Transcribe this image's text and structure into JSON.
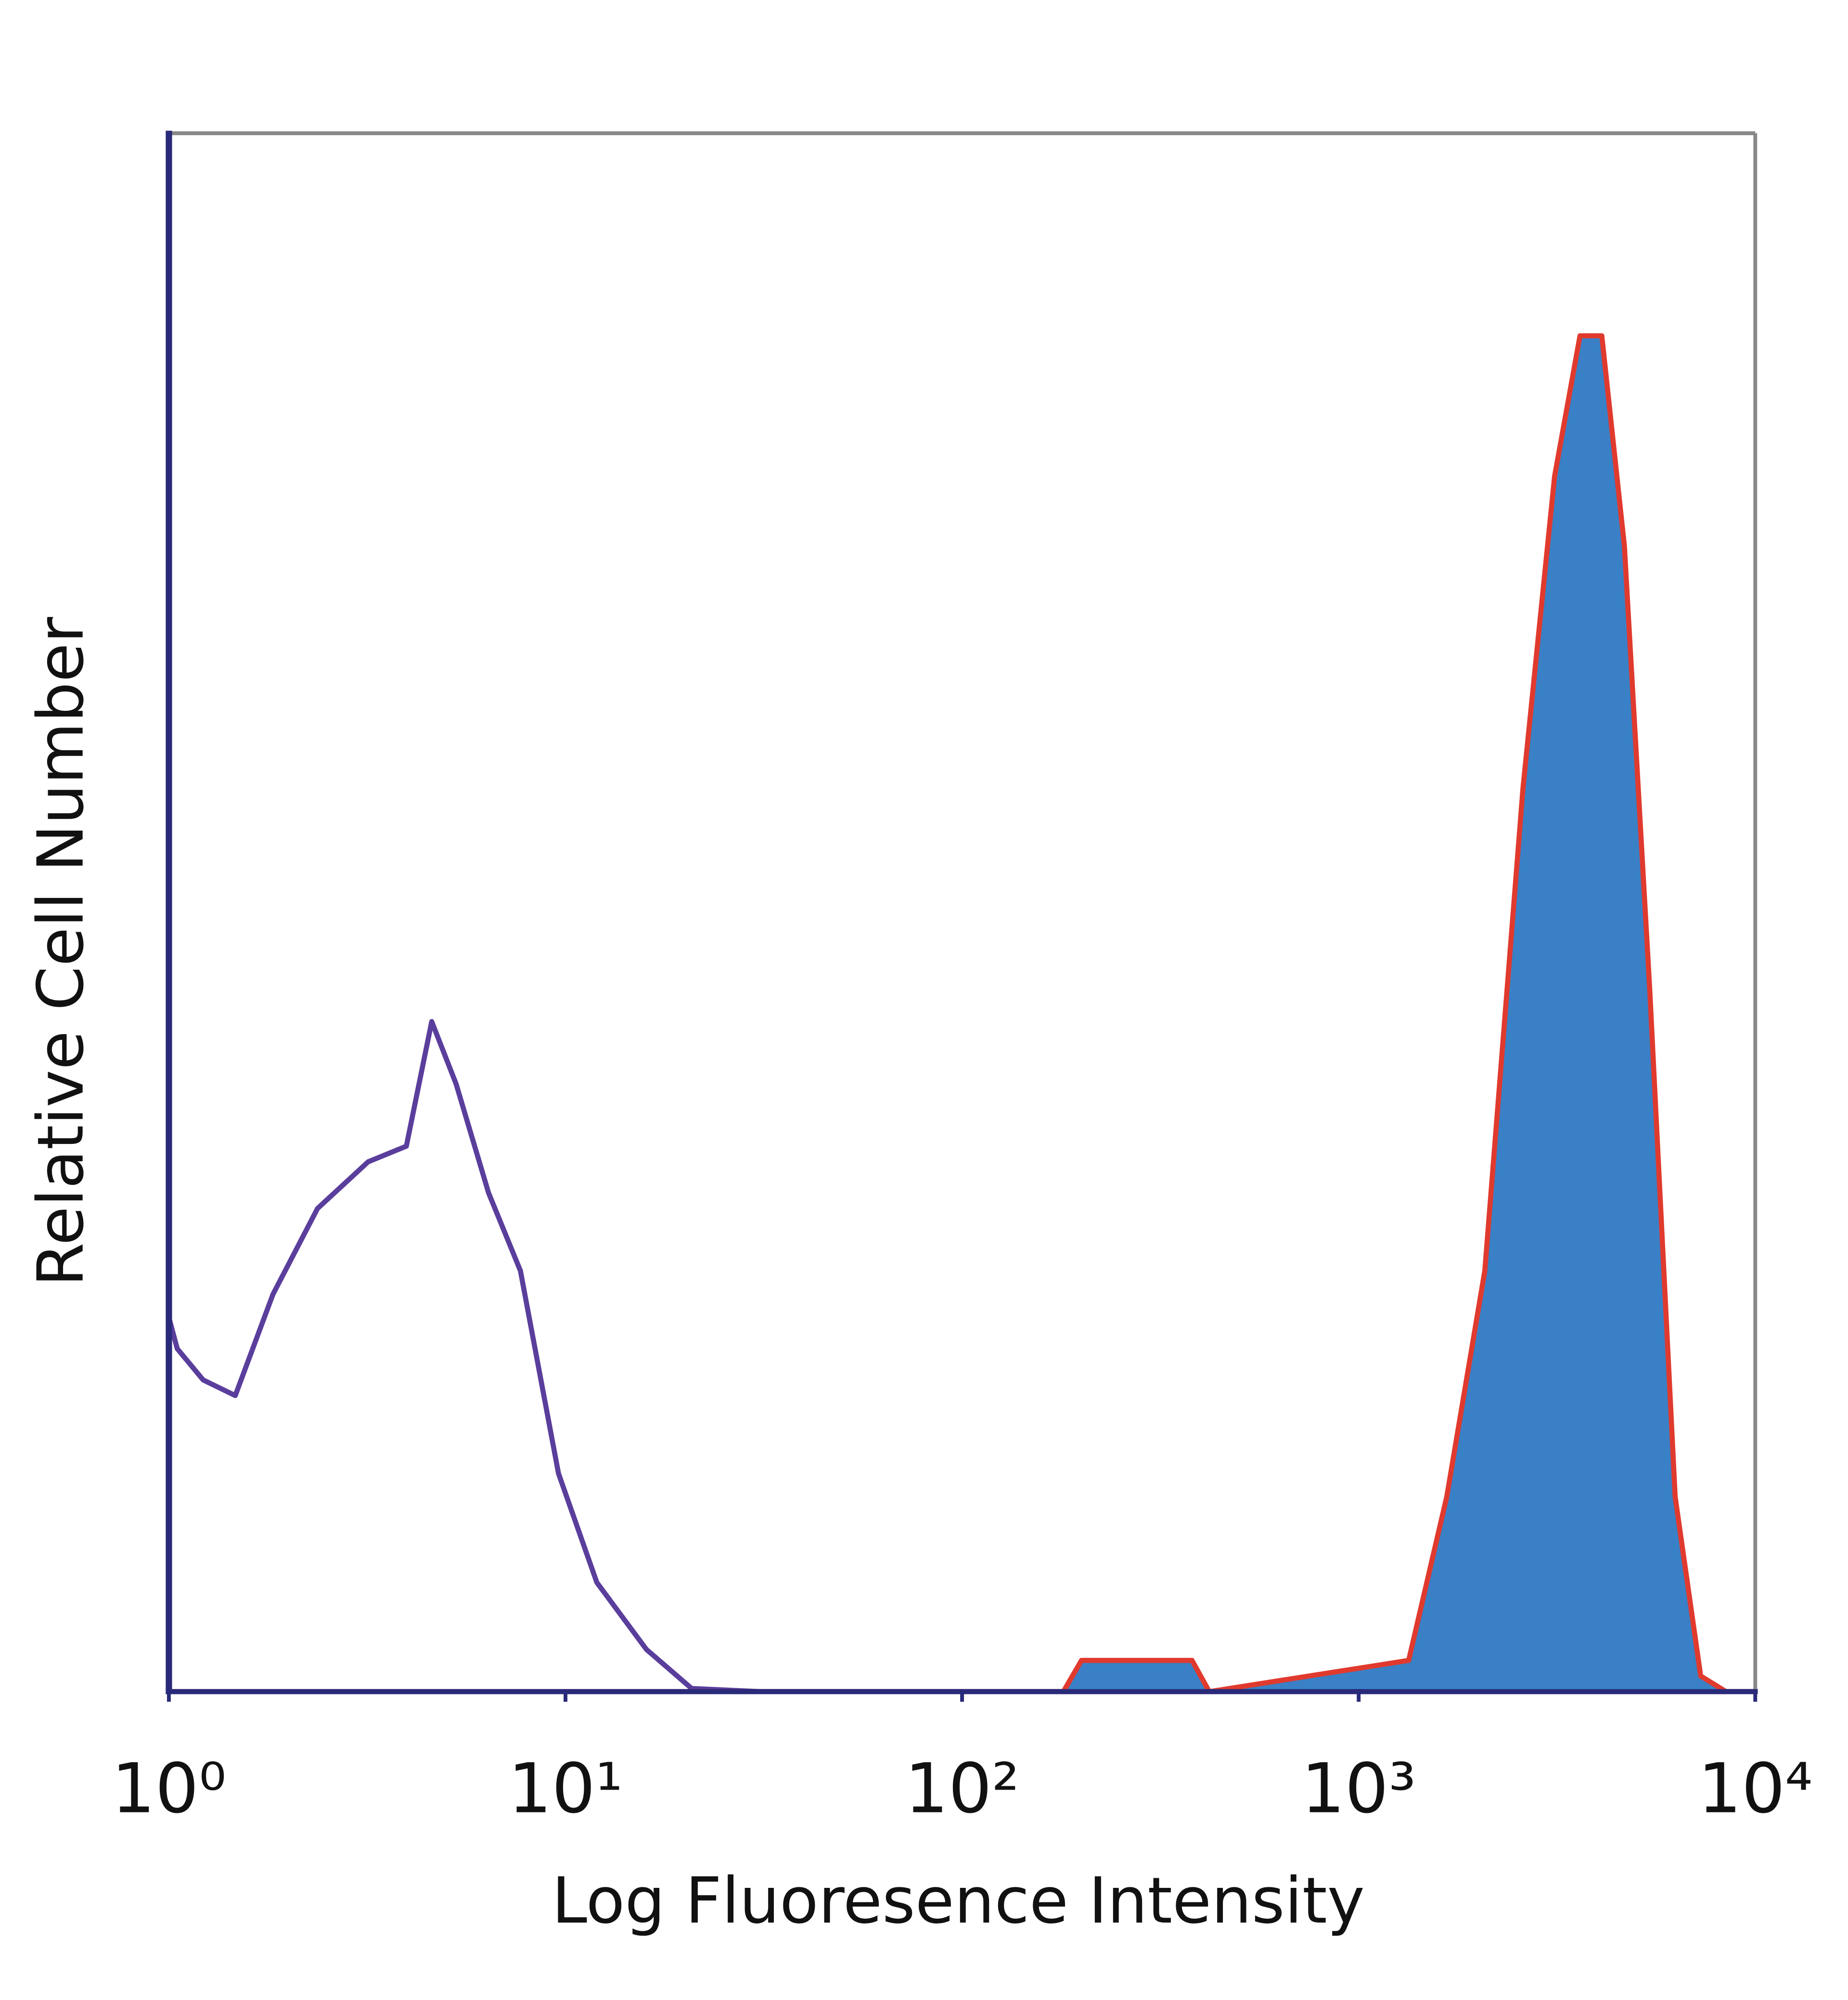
{
  "chart_data": {
    "type": "histogram",
    "xscale": "log",
    "xlabel": "Log Fluoresence Intensity",
    "ylabel": "Relative Cell Number",
    "xlim": [
      1,
      10000
    ],
    "ylim": [
      0,
      100
    ],
    "xticks": [
      {
        "value": 1,
        "label": "10⁰"
      },
      {
        "value": 10,
        "label": "10¹"
      },
      {
        "value": 100,
        "label": "10²"
      },
      {
        "value": 1000,
        "label": "10³"
      },
      {
        "value": 10000,
        "label": "10⁴"
      }
    ],
    "series": [
      {
        "color": "#5a3e9c",
        "filled": false,
        "x": [
          1,
          1.05,
          1.22,
          1.47,
          1.83,
          2.37,
          3.18,
          3.97,
          4.6,
          5.3,
          6.4,
          7.7,
          9.6,
          12,
          16,
          20.8,
          31,
          10000
        ],
        "values": [
          24,
          22,
          20,
          19,
          25.5,
          31,
          34,
          35,
          43,
          39,
          32,
          27,
          14,
          7,
          2.7,
          0.2,
          0,
          0
        ]
      },
      {
        "color": "#3a80c6",
        "edge_color": "#e03a2e",
        "filled": true,
        "x": [
          1,
          180,
          200,
          380,
          420,
          1337,
          1667,
          2080,
          2596,
          3119,
          3614,
          4102,
          4677,
          5420,
          6281,
          7283,
          8440,
          10000
        ],
        "values": [
          0,
          0,
          2,
          2,
          0,
          2,
          12.5,
          27,
          58,
          78,
          87,
          87,
          73.5,
          45,
          12.5,
          1,
          0,
          0
        ]
      }
    ]
  }
}
